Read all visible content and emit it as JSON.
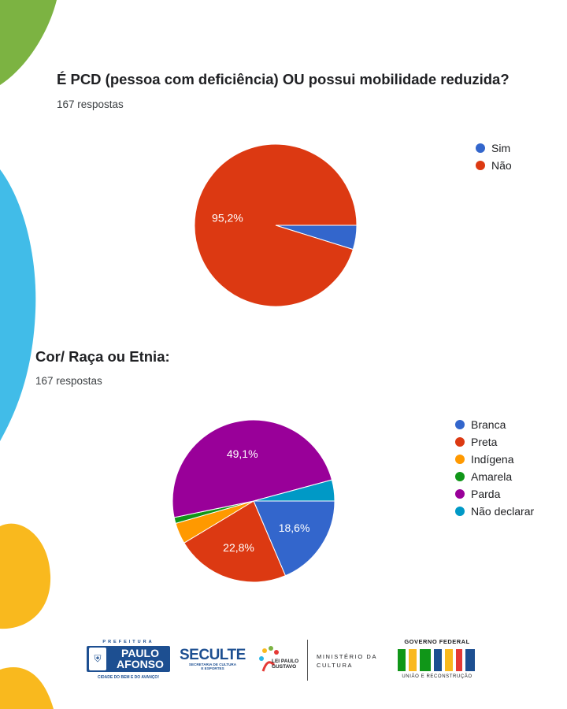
{
  "q1": {
    "title": "É PCD (pessoa com deficiência) OU possui mobilidade reduzida?",
    "responses": "167 respostas"
  },
  "q2": {
    "title": "Cor/ Raça ou Etnia:",
    "responses": "167 respostas"
  },
  "chart_data": [
    {
      "type": "pie",
      "title": "É PCD (pessoa com deficiência) OU possui mobilidade reduzida?",
      "categories": [
        "Sim",
        "Não"
      ],
      "values": [
        4.8,
        95.2
      ],
      "colors": [
        "#3366cc",
        "#dc3912"
      ],
      "data_labels": [
        "",
        "95,2%"
      ],
      "legend_position": "right"
    },
    {
      "type": "pie",
      "title": "Cor/ Raça ou Etnia:",
      "categories": [
        "Branca",
        "Preta",
        "Indígena",
        "Amarela",
        "Parda",
        "Não declarar"
      ],
      "values": [
        18.6,
        22.8,
        4.2,
        1.2,
        49.1,
        4.2
      ],
      "colors": [
        "#3366cc",
        "#dc3912",
        "#ff9900",
        "#109618",
        "#990099",
        "#0099c6"
      ],
      "data_labels": [
        "18,6%",
        "22,8%",
        "",
        "",
        "49,1%",
        ""
      ],
      "legend_position": "right"
    }
  ],
  "footer": {
    "prefeitura": "PREFEITURA",
    "paulo_afonso": "PAULO AFONSO",
    "pa_slogan": "CIDADE DO BEM E DO AVANÇO!",
    "secult": "SECULTE",
    "secult_sub": "SECRETARIA DE CULTURA E ESPORTES",
    "lei_paulo_gustavo": "LEI PAULO GUSTAVO",
    "ministerio": "MINISTÉRIO DA CULTURA",
    "governo_federal": "GOVERNO FEDERAL",
    "brasil": "BRASIL",
    "gf_slogan": "UNIÃO E RECONSTRUÇÃO"
  },
  "colors": {
    "green_decor": "#7cb342",
    "blue_decor": "#29b6e6",
    "yellow_decor": "#f9b91e",
    "brand_blue": "#1d4f91"
  }
}
